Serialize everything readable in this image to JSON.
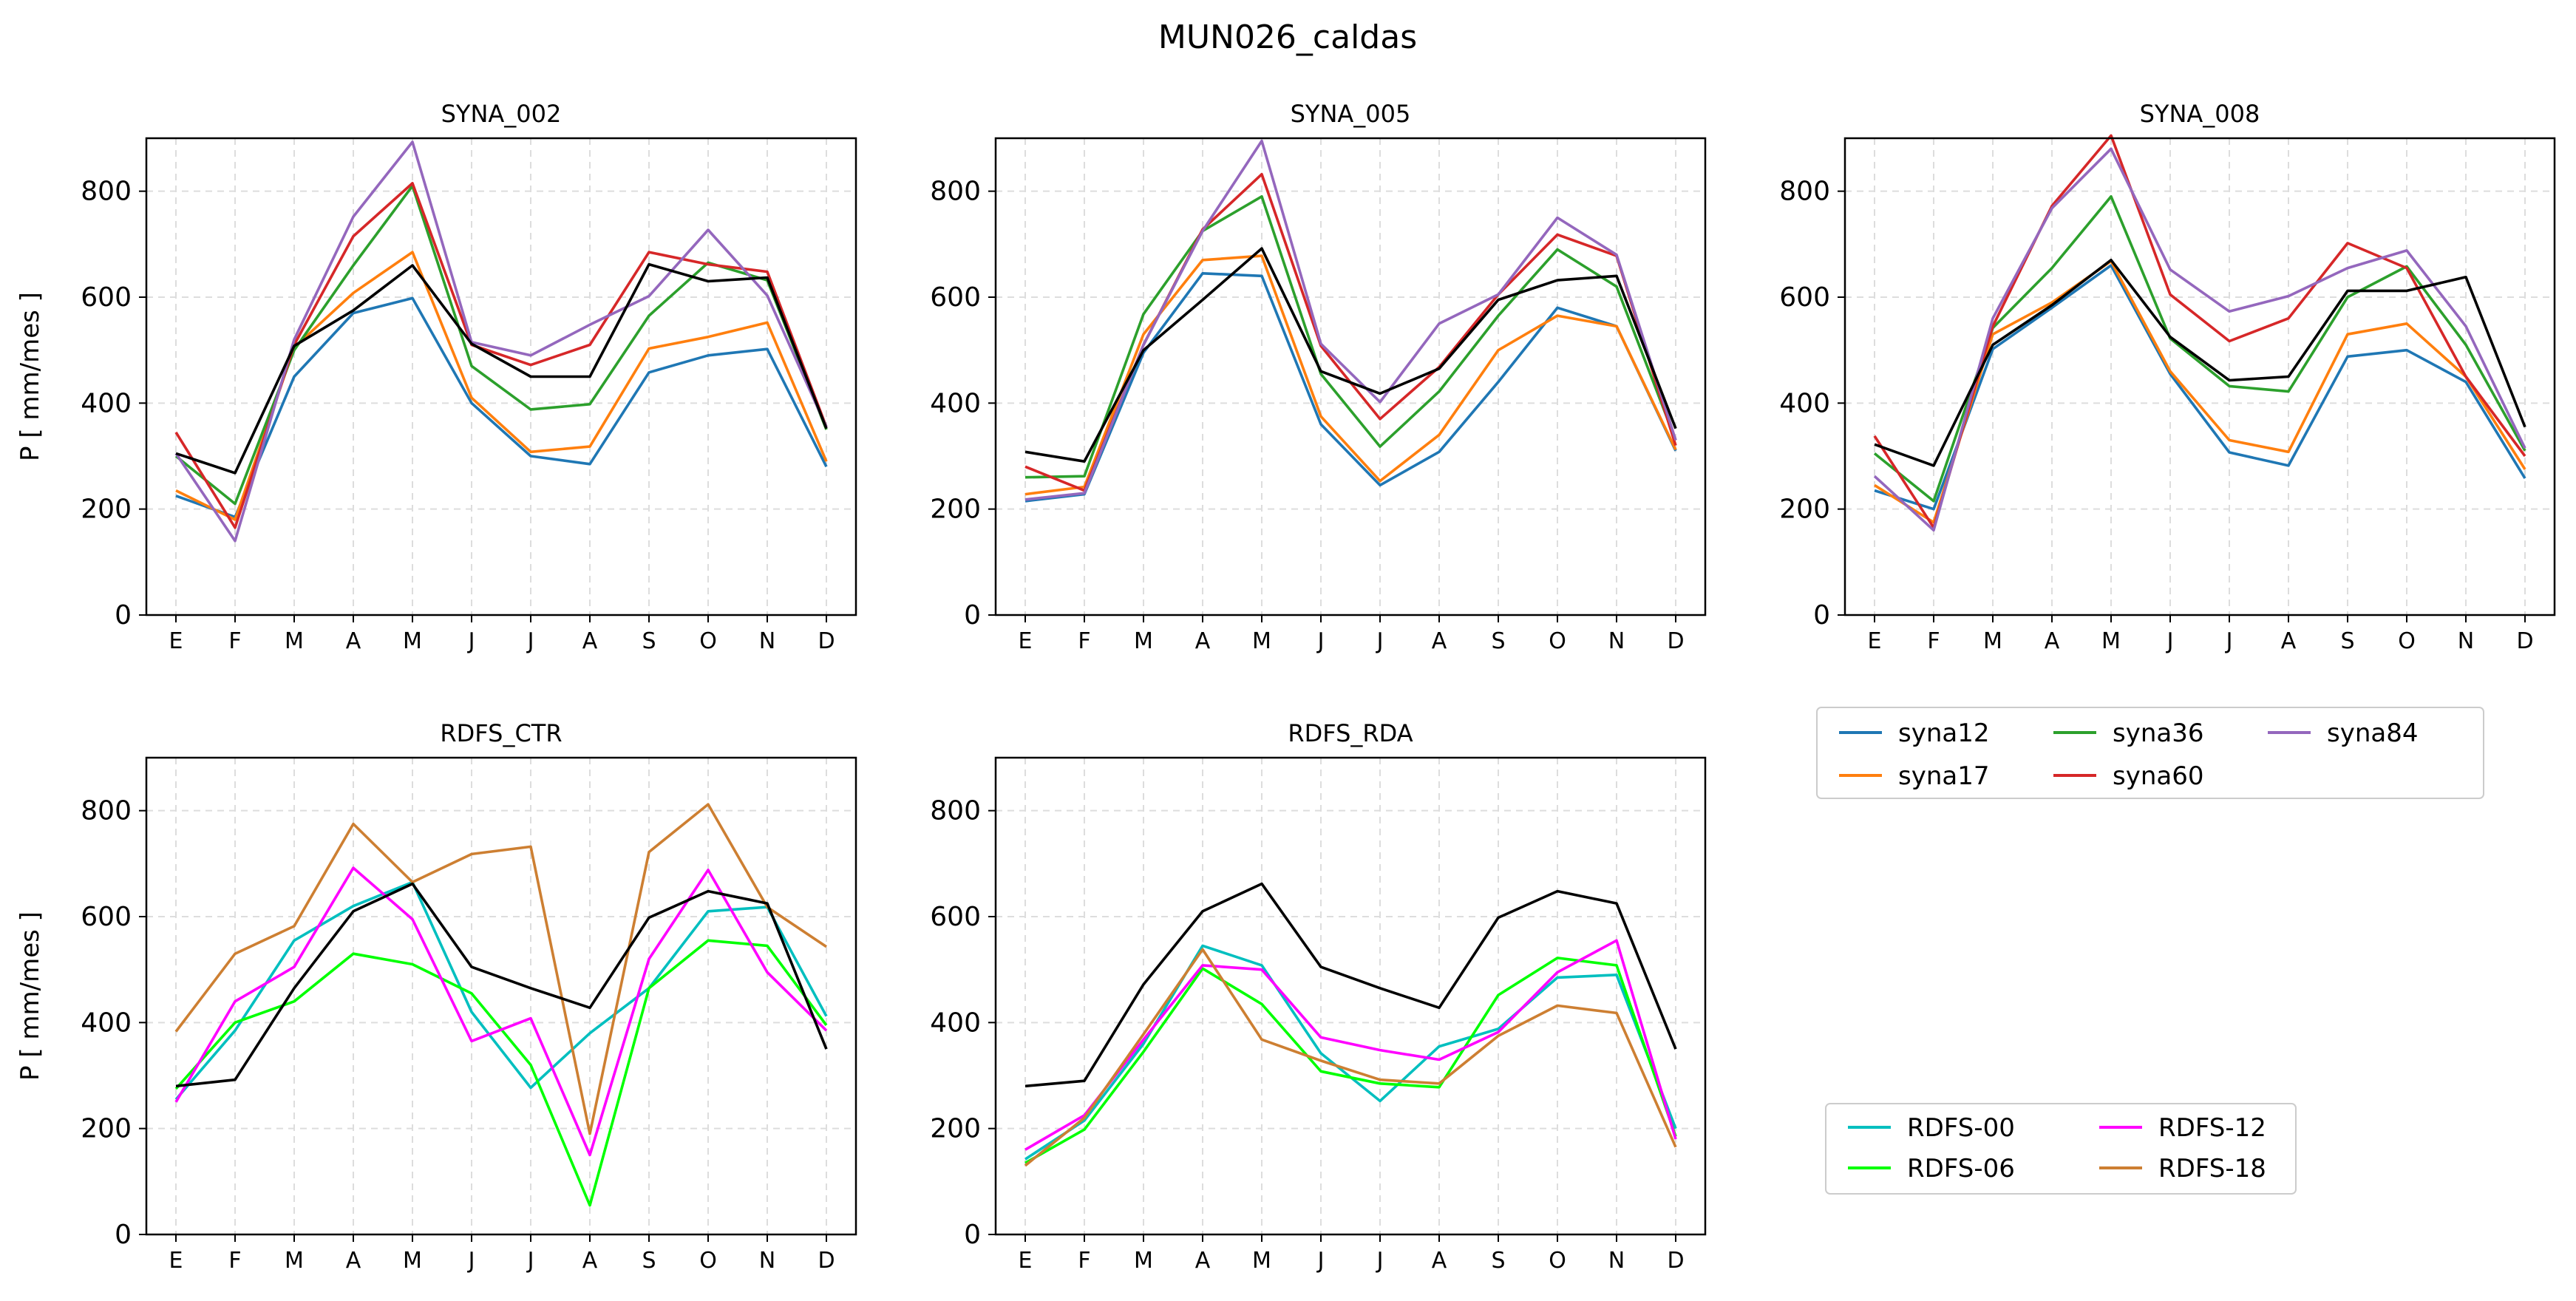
{
  "chart_data": {
    "title": "MUN026_caldas",
    "type": "line",
    "ylabel": "P [ mm/mes ]",
    "ylim": [
      0,
      900
    ],
    "yticks": [
      0,
      200,
      400,
      600,
      800
    ],
    "grid": true,
    "categories": [
      "E",
      "F",
      "M",
      "A",
      "M",
      "J",
      "J",
      "A",
      "S",
      "O",
      "N",
      "D"
    ],
    "observed_color": "#000000",
    "panels": [
      {
        "title": "SYNA_002",
        "series": [
          {
            "name": "syna12",
            "color": "#1f77b4",
            "values": [
              225,
              185,
              450,
              570,
              598,
              400,
              300,
              285,
              458,
              490,
              502,
              280
            ]
          },
          {
            "name": "syna17",
            "color": "#ff7f0e",
            "values": [
              235,
              180,
              505,
              608,
              685,
              410,
              308,
              318,
              503,
              525,
              552,
              290
            ]
          },
          {
            "name": "syna36",
            "color": "#2ca02c",
            "values": [
              300,
              210,
              500,
              660,
              810,
              470,
              388,
              398,
              565,
              665,
              632,
              350
            ]
          },
          {
            "name": "syna60",
            "color": "#d62728",
            "values": [
              345,
              165,
              510,
              715,
              815,
              510,
              472,
              510,
              685,
              662,
              648,
              355
            ]
          },
          {
            "name": "syna84",
            "color": "#9467bd",
            "values": [
              305,
              140,
              520,
              752,
              893,
              515,
              490,
              548,
              602,
              727,
              603,
              355
            ]
          },
          {
            "name": "",
            "color": "#000000",
            "values": [
              305,
              268,
              508,
              575,
              660,
              512,
              450,
              450,
              662,
              630,
              637,
              352
            ]
          }
        ]
      },
      {
        "title": "SYNA_005",
        "series": [
          {
            "name": "syna12",
            "color": "#1f77b4",
            "values": [
              215,
              228,
              495,
              645,
              640,
              360,
              245,
              308,
              440,
              580,
              545,
              310
            ]
          },
          {
            "name": "syna17",
            "color": "#ff7f0e",
            "values": [
              228,
              242,
              530,
              670,
              678,
              375,
              253,
              340,
              500,
              565,
              545,
              312
            ]
          },
          {
            "name": "syna36",
            "color": "#2ca02c",
            "values": [
              260,
              262,
              568,
              725,
              790,
              455,
              318,
              422,
              565,
              690,
              620,
              330
            ]
          },
          {
            "name": "syna60",
            "color": "#d62728",
            "values": [
              280,
              235,
              510,
              728,
              832,
              508,
              370,
              468,
              605,
              718,
              678,
              320
            ]
          },
          {
            "name": "syna84",
            "color": "#9467bd",
            "values": [
              218,
              230,
              510,
              725,
              895,
              512,
              402,
              550,
              605,
              750,
              680,
              330
            ]
          },
          {
            "name": "",
            "color": "#000000",
            "values": [
              308,
              290,
              500,
              595,
              692,
              460,
              418,
              465,
              595,
              632,
              640,
              352
            ]
          }
        ]
      },
      {
        "title": "SYNA_008",
        "series": [
          {
            "name": "syna12",
            "color": "#1f77b4",
            "values": [
              235,
              200,
              502,
              580,
              660,
              455,
              307,
              282,
              488,
              500,
              440,
              258
            ]
          },
          {
            "name": "syna17",
            "color": "#ff7f0e",
            "values": [
              245,
              175,
              530,
              590,
              668,
              460,
              330,
              308,
              530,
              550,
              450,
              275
            ]
          },
          {
            "name": "syna36",
            "color": "#2ca02c",
            "values": [
              305,
              215,
              542,
              655,
              790,
              522,
              432,
              422,
              600,
              658,
              510,
              310
            ]
          },
          {
            "name": "syna60",
            "color": "#d62728",
            "values": [
              338,
              165,
              545,
              772,
              905,
              605,
              517,
              560,
              702,
              655,
              450,
              300
            ]
          },
          {
            "name": "syna84",
            "color": "#9467bd",
            "values": [
              262,
              160,
              560,
              768,
              880,
              652,
              573,
              602,
              655,
              688,
              545,
              315
            ]
          },
          {
            "name": "",
            "color": "#000000",
            "values": [
              322,
              282,
              510,
              585,
              670,
              525,
              443,
              450,
              612,
              612,
              638,
              355
            ]
          }
        ]
      },
      {
        "title": "RDFS_CTR",
        "series": [
          {
            "name": "RDFS-00",
            "color": "#00bfbf",
            "values": [
              255,
              385,
              555,
              620,
              665,
              420,
              277,
              380,
              465,
              610,
              618,
              412
            ]
          },
          {
            "name": "RDFS-06",
            "color": "#00ff00",
            "values": [
              275,
              400,
              440,
              530,
              510,
              455,
              320,
              55,
              465,
              555,
              545,
              395
            ]
          },
          {
            "name": "RDFS-12",
            "color": "#ff00ff",
            "values": [
              250,
              440,
              505,
              692,
              595,
              365,
              408,
              150,
              520,
              688,
              495,
              385
            ]
          },
          {
            "name": "RDFS-18",
            "color": "#cd7f32",
            "values": [
              383,
              530,
              582,
              775,
              665,
              718,
              732,
              190,
              722,
              812,
              618,
              543
            ]
          },
          {
            "name": "",
            "color": "#000000",
            "values": [
              280,
              292,
              465,
              610,
              662,
              505,
              465,
              428,
              598,
              648,
              625,
              350
            ]
          }
        ]
      },
      {
        "title": "RDFS_RDA",
        "series": [
          {
            "name": "RDFS-00",
            "color": "#00bfbf",
            "values": [
              142,
              215,
              360,
              545,
              508,
              342,
              252,
              355,
              388,
              485,
              490,
              200
            ]
          },
          {
            "name": "RDFS-06",
            "color": "#00ff00",
            "values": [
              135,
              198,
              345,
              502,
              435,
              308,
              285,
              278,
              452,
              522,
              508,
              185
            ]
          },
          {
            "name": "RDFS-12",
            "color": "#ff00ff",
            "values": [
              160,
              225,
              368,
              508,
              500,
              372,
              348,
              330,
              382,
              495,
              555,
              180
            ]
          },
          {
            "name": "RDFS-18",
            "color": "#cd7f32",
            "values": [
              130,
              220,
              378,
              538,
              368,
              328,
              292,
              285,
              375,
              432,
              418,
              165
            ]
          },
          {
            "name": "",
            "color": "#000000",
            "values": [
              280,
              290,
              472,
              610,
              662,
              505,
              465,
              428,
              598,
              648,
              625,
              350
            ]
          }
        ]
      }
    ],
    "legends": [
      {
        "entries": [
          {
            "name": "syna12",
            "color": "#1f77b4"
          },
          {
            "name": "syna17",
            "color": "#ff7f0e"
          },
          {
            "name": "syna36",
            "color": "#2ca02c"
          },
          {
            "name": "syna60",
            "color": "#d62728"
          },
          {
            "name": "syna84",
            "color": "#9467bd"
          }
        ]
      },
      {
        "entries": [
          {
            "name": "RDFS-00",
            "color": "#00bfbf"
          },
          {
            "name": "RDFS-06",
            "color": "#00ff00"
          },
          {
            "name": "RDFS-12",
            "color": "#ff00ff"
          },
          {
            "name": "RDFS-18",
            "color": "#cd7f32"
          }
        ]
      }
    ]
  }
}
